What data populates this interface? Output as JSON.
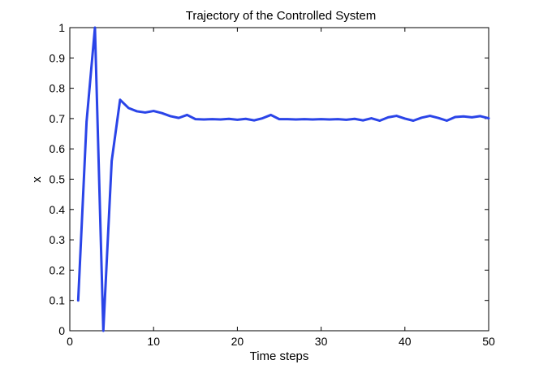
{
  "chart_data": {
    "type": "line",
    "title": "Trajectory of the Controlled System",
    "xlabel": "Time steps",
    "ylabel": "x",
    "xlim": [
      0,
      50
    ],
    "ylim": [
      0,
      1
    ],
    "xticks": [
      "0",
      "10",
      "20",
      "30",
      "40",
      "50"
    ],
    "yticks": [
      "0",
      "0.1",
      "0.2",
      "0.3",
      "0.4",
      "0.5",
      "0.6",
      "0.7",
      "0.8",
      "0.9",
      "1"
    ],
    "grid": false,
    "series": [
      {
        "color": "#2a44e8",
        "x": [
          1,
          2,
          3,
          4,
          5,
          6,
          7,
          8,
          9,
          10,
          11,
          12,
          13,
          14,
          15,
          16,
          17,
          18,
          19,
          20,
          21,
          22,
          23,
          24,
          25,
          26,
          27,
          28,
          29,
          30,
          31,
          32,
          33,
          34,
          35,
          36,
          37,
          38,
          39,
          40,
          41,
          42,
          43,
          44,
          45,
          46,
          47,
          48,
          49,
          50
        ],
        "y": [
          0.1,
          0.69,
          1.0,
          0.0,
          0.56,
          0.762,
          0.735,
          0.724,
          0.72,
          0.725,
          0.718,
          0.708,
          0.702,
          0.712,
          0.698,
          0.697,
          0.698,
          0.697,
          0.699,
          0.696,
          0.699,
          0.694,
          0.701,
          0.712,
          0.698,
          0.698,
          0.697,
          0.698,
          0.697,
          0.698,
          0.697,
          0.698,
          0.696,
          0.699,
          0.694,
          0.701,
          0.693,
          0.704,
          0.709,
          0.7,
          0.693,
          0.703,
          0.709,
          0.702,
          0.693,
          0.705,
          0.707,
          0.704,
          0.708,
          0.701
        ]
      }
    ]
  }
}
